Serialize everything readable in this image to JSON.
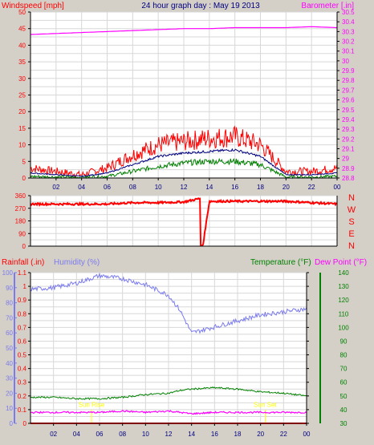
{
  "header": {
    "title": "24 hour graph day : May 19 2013",
    "wind_label": "Windspeed [mph]",
    "baro_label": "Barometer [.in]"
  },
  "labels": {
    "rain": "Rainfall (.in)",
    "humidity": "Humidity (%)",
    "temperature": "Temperature (°F)",
    "dewpoint": "Dew Point (°F)",
    "sunrise": "Sun Rise",
    "sunset": "Sun Set"
  },
  "colors": {
    "background": "#d4d0c8",
    "plot": "#ffffff",
    "wind": "#ff0000",
    "wind_avg": "#000080",
    "wind_low": "#008000",
    "baro": "#ff00ff",
    "direction": "#ff0000",
    "rain": "#ff0000",
    "humidity": "#7b7bef",
    "temperature": "#008000",
    "dewpoint": "#ff00ff",
    "sun": "#ffff00",
    "title": "#000080"
  },
  "chart_data": [
    {
      "type": "line",
      "name": "wind_and_barometer",
      "x_ticks": [
        "02",
        "04",
        "06",
        "08",
        "10",
        "12",
        "14",
        "16",
        "18",
        "20",
        "22",
        "00"
      ],
      "ylim_left": [
        0,
        50
      ],
      "y_ticks_left": [
        "0",
        "5",
        "10",
        "15",
        "20",
        "25",
        "30",
        "35",
        "40",
        "45",
        "50"
      ],
      "ylim_right": [
        28.8,
        30.5
      ],
      "y_ticks_right": [
        "28.8",
        "28.9",
        "29",
        "29.1",
        "29.2",
        "29.3",
        "29.4",
        "29.5",
        "29.6",
        "29.7",
        "29.8",
        "29.9",
        "30",
        "30.1",
        "30.2",
        "30.3",
        "30.4",
        "30.5"
      ],
      "x_hours": [
        0,
        2,
        4,
        6,
        8,
        10,
        12,
        14,
        16,
        18,
        20,
        22,
        24
      ],
      "series": [
        {
          "key": "gust",
          "values": [
            3,
            2,
            1,
            3,
            7,
            10,
            11,
            12,
            12.5,
            10,
            2,
            2,
            3
          ]
        },
        {
          "key": "avg",
          "values": [
            1.5,
            1,
            0.5,
            1.5,
            4,
            6.5,
            7.5,
            8,
            8.5,
            6.5,
            1,
            1,
            1.5
          ]
        },
        {
          "key": "low",
          "values": [
            0.5,
            0.3,
            0.2,
            0.5,
            2,
            3.5,
            4.5,
            5,
            5,
            4,
            0.3,
            0.3,
            0.5
          ]
        },
        {
          "key": "baro",
          "values": [
            30.27,
            30.28,
            30.29,
            30.3,
            30.31,
            30.32,
            30.33,
            30.33,
            30.34,
            30.34,
            30.34,
            30.35,
            30.34
          ]
        }
      ]
    },
    {
      "type": "line",
      "name": "wind_direction",
      "ylim": [
        0,
        360
      ],
      "y_ticks": [
        "0",
        "90",
        "180",
        "270",
        "360"
      ],
      "compass": [
        "N",
        "W",
        "S",
        "E",
        "N"
      ],
      "x_hours": [
        0,
        2,
        4,
        6,
        8,
        10,
        12,
        13.3,
        13.5,
        14,
        16,
        18,
        20,
        22,
        24
      ],
      "values": [
        300,
        300,
        300,
        300,
        310,
        310,
        315,
        340,
        5,
        320,
        320,
        320,
        320,
        310,
        300
      ]
    },
    {
      "type": "line",
      "name": "rain_humidity_temperature",
      "y_ticks_rain": [
        "0",
        "0.1",
        "0.2",
        "0.3",
        "0.4",
        "0.5",
        "0.6",
        "0.7",
        "0.8",
        "0.9",
        "1",
        "1.1"
      ],
      "ylim_rain": [
        0,
        1.1
      ],
      "y_ticks_humidity": [
        "0",
        "10",
        "20",
        "30",
        "40",
        "50",
        "60",
        "70",
        "80",
        "90",
        "100"
      ],
      "ylim_humidity": [
        0,
        100
      ],
      "y_ticks_temp": [
        "30",
        "40",
        "50",
        "60",
        "70",
        "80",
        "90",
        "100",
        "110",
        "120",
        "130",
        "140"
      ],
      "ylim_temp": [
        30,
        140
      ],
      "x_hours": [
        0,
        2,
        4,
        6,
        8,
        10,
        12,
        13,
        14,
        16,
        18,
        20,
        22,
        24
      ],
      "series": [
        {
          "key": "rain",
          "values": [
            0,
            0,
            0,
            0,
            0,
            0,
            0,
            0,
            0,
            0,
            0,
            0,
            0,
            0
          ]
        },
        {
          "key": "humidity",
          "values": [
            89,
            90,
            93,
            98,
            96,
            92,
            85,
            75,
            60,
            64,
            68,
            72,
            74,
            76
          ]
        },
        {
          "key": "temperature",
          "values": [
            49,
            49,
            48,
            48,
            49,
            51,
            52,
            54,
            55,
            56,
            55,
            53,
            52,
            50
          ]
        },
        {
          "key": "dewpoint",
          "values": [
            38,
            38,
            38,
            38,
            39,
            38,
            39,
            38,
            37,
            38,
            38,
            38,
            38,
            38
          ]
        }
      ],
      "sunrise_hour": 5.3,
      "sunset_hour": 20.4
    }
  ]
}
